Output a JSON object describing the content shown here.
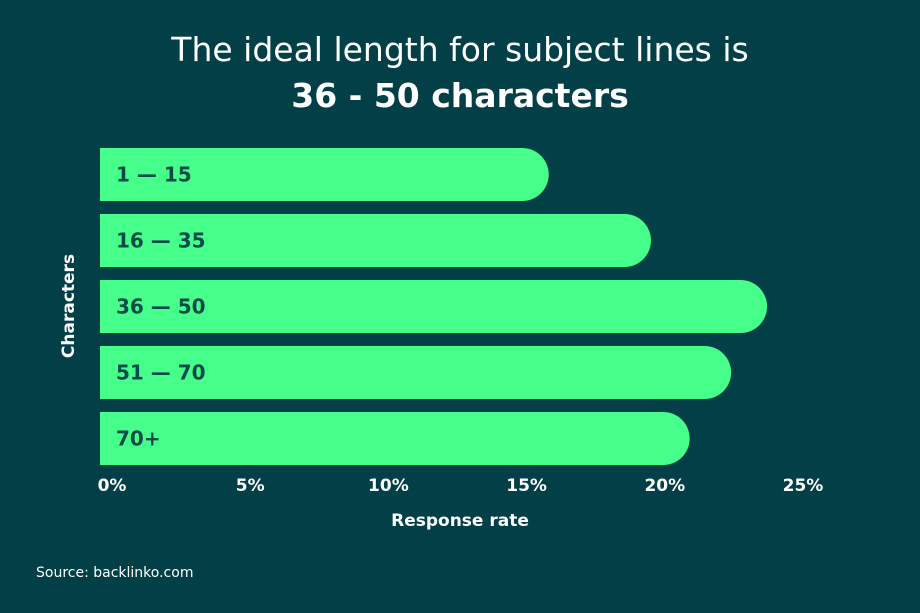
{
  "chart_data": {
    "type": "bar",
    "orientation": "horizontal",
    "title_line1": "The ideal length for subject lines is",
    "title_line2": "36 - 50 characters",
    "categories": [
      "1 — 15",
      "16 — 35",
      "36 — 50",
      "51 — 70",
      "70+"
    ],
    "values": [
      15.8,
      19.5,
      23.7,
      22.4,
      20.9
    ],
    "xlabel": "Response rate",
    "ylabel": "Characters",
    "xticks": [
      "0%",
      "5%",
      "10%",
      "15%",
      "20%",
      "25%"
    ],
    "xlim": [
      0,
      25
    ],
    "grid": false,
    "colors": {
      "background": "#023f47",
      "bar": "#45ff8a",
      "bar_label": "#0b4a4a",
      "text": "#ffffff"
    }
  },
  "source": "Source: backlinko.com"
}
